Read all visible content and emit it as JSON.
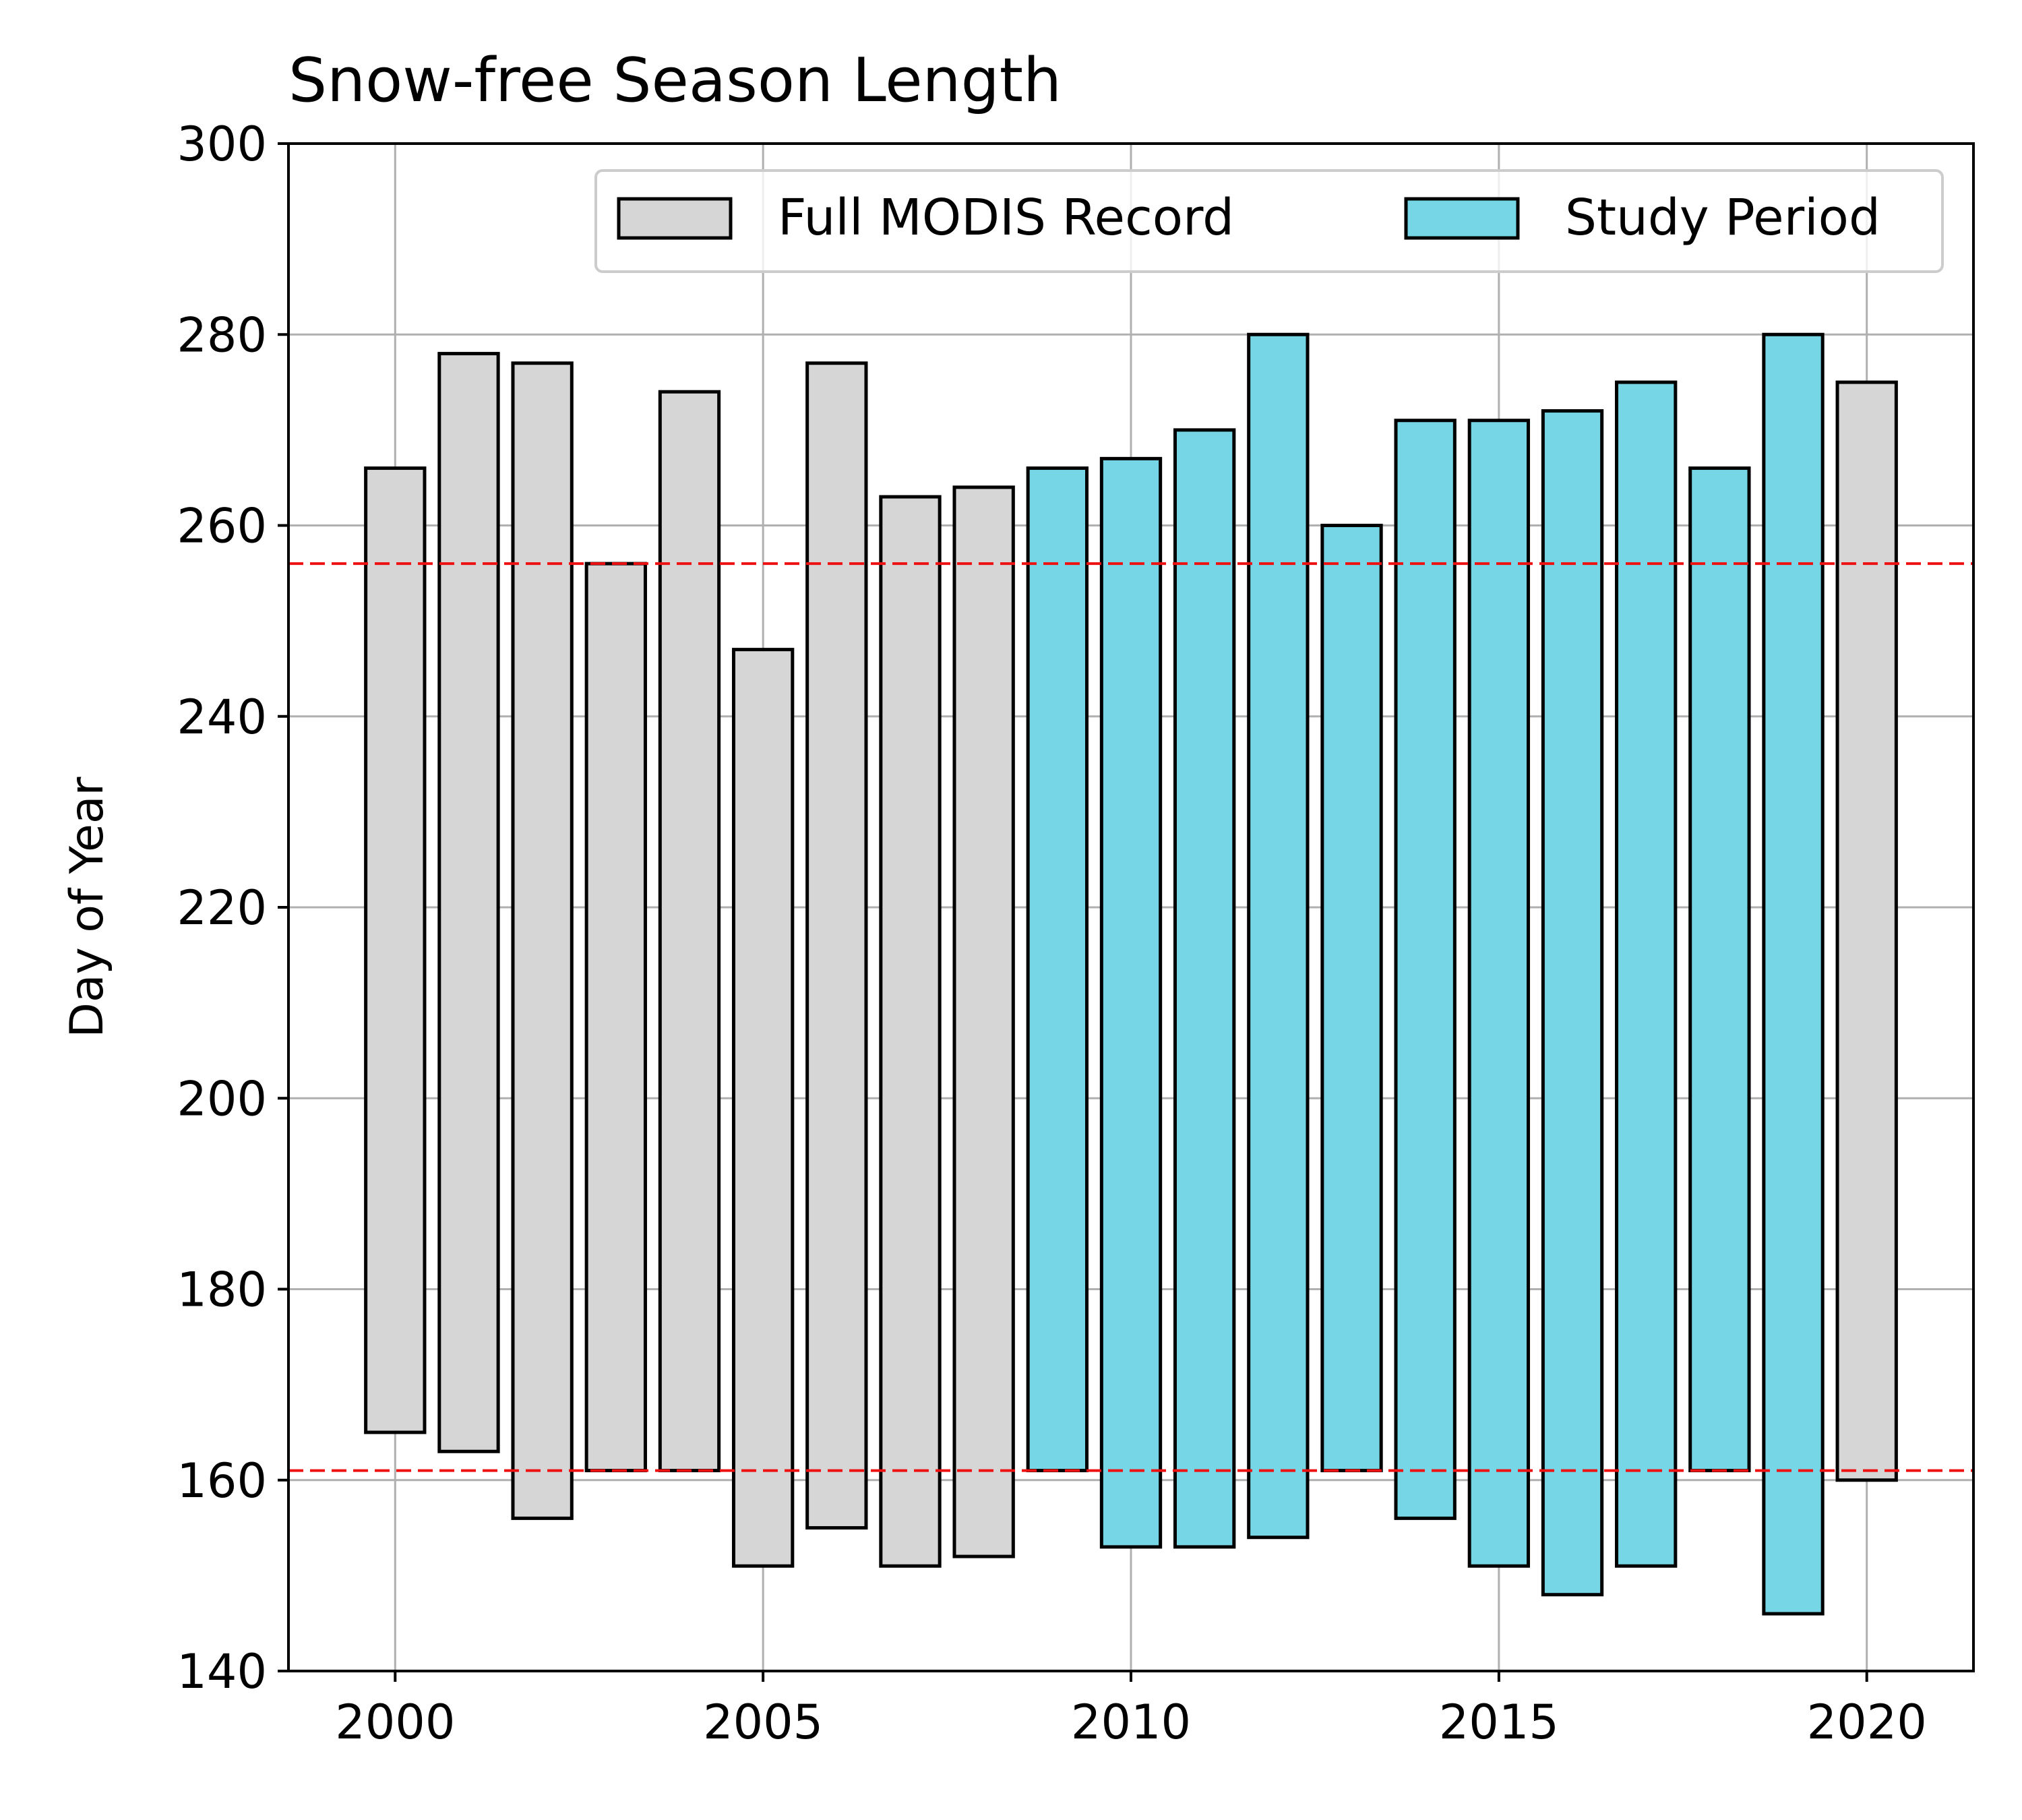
{
  "chart_data": {
    "type": "bar",
    "title": "Snow-free Season Length",
    "xlabel": "",
    "ylabel": "Day of Year",
    "xlim": [
      1998.55,
      2021.45
    ],
    "ylim": [
      140,
      300
    ],
    "x_ticks": [
      2000,
      2005,
      2010,
      2015,
      2020
    ],
    "y_ticks": [
      140,
      160,
      180,
      200,
      220,
      240,
      260,
      280,
      300
    ],
    "grid": true,
    "legend_position": "top-right",
    "legend": [
      {
        "series": "full",
        "label": "Full MODIS Record",
        "color": "#d6d6d6"
      },
      {
        "series": "study",
        "label": "Study Period",
        "color": "#76d6e5"
      }
    ],
    "series": [
      {
        "name": "Full MODIS Record",
        "key": "full",
        "color": "#d6d6d6",
        "bars": [
          {
            "x": 2000,
            "start": 165,
            "end": 266
          },
          {
            "x": 2001,
            "start": 163,
            "end": 278
          },
          {
            "x": 2002,
            "start": 156,
            "end": 277
          },
          {
            "x": 2003,
            "start": 161,
            "end": 256
          },
          {
            "x": 2004,
            "start": 161,
            "end": 274
          },
          {
            "x": 2005,
            "start": 151,
            "end": 247
          },
          {
            "x": 2006,
            "start": 155,
            "end": 277
          },
          {
            "x": 2007,
            "start": 151,
            "end": 263
          },
          {
            "x": 2008,
            "start": 152,
            "end": 264
          },
          {
            "x": 2020,
            "start": 160,
            "end": 275
          }
        ]
      },
      {
        "name": "Study Period",
        "key": "study",
        "color": "#76d6e5",
        "bars": [
          {
            "x": 2009,
            "start": 161,
            "end": 266
          },
          {
            "x": 2010,
            "start": 153,
            "end": 267
          },
          {
            "x": 2011,
            "start": 153,
            "end": 270
          },
          {
            "x": 2012,
            "start": 154,
            "end": 280
          },
          {
            "x": 2013,
            "start": 161,
            "end": 260
          },
          {
            "x": 2014,
            "start": 156,
            "end": 271
          },
          {
            "x": 2015,
            "start": 151,
            "end": 271
          },
          {
            "x": 2016,
            "start": 148,
            "end": 272
          },
          {
            "x": 2017,
            "start": 151,
            "end": 275
          },
          {
            "x": 2018,
            "start": 161,
            "end": 266
          },
          {
            "x": 2019,
            "start": 146,
            "end": 280
          }
        ]
      }
    ],
    "reference_lines": [
      {
        "y": 256,
        "color": "#ee1111",
        "style": "dashed"
      },
      {
        "y": 161,
        "color": "#ee1111",
        "style": "dashed"
      }
    ]
  }
}
